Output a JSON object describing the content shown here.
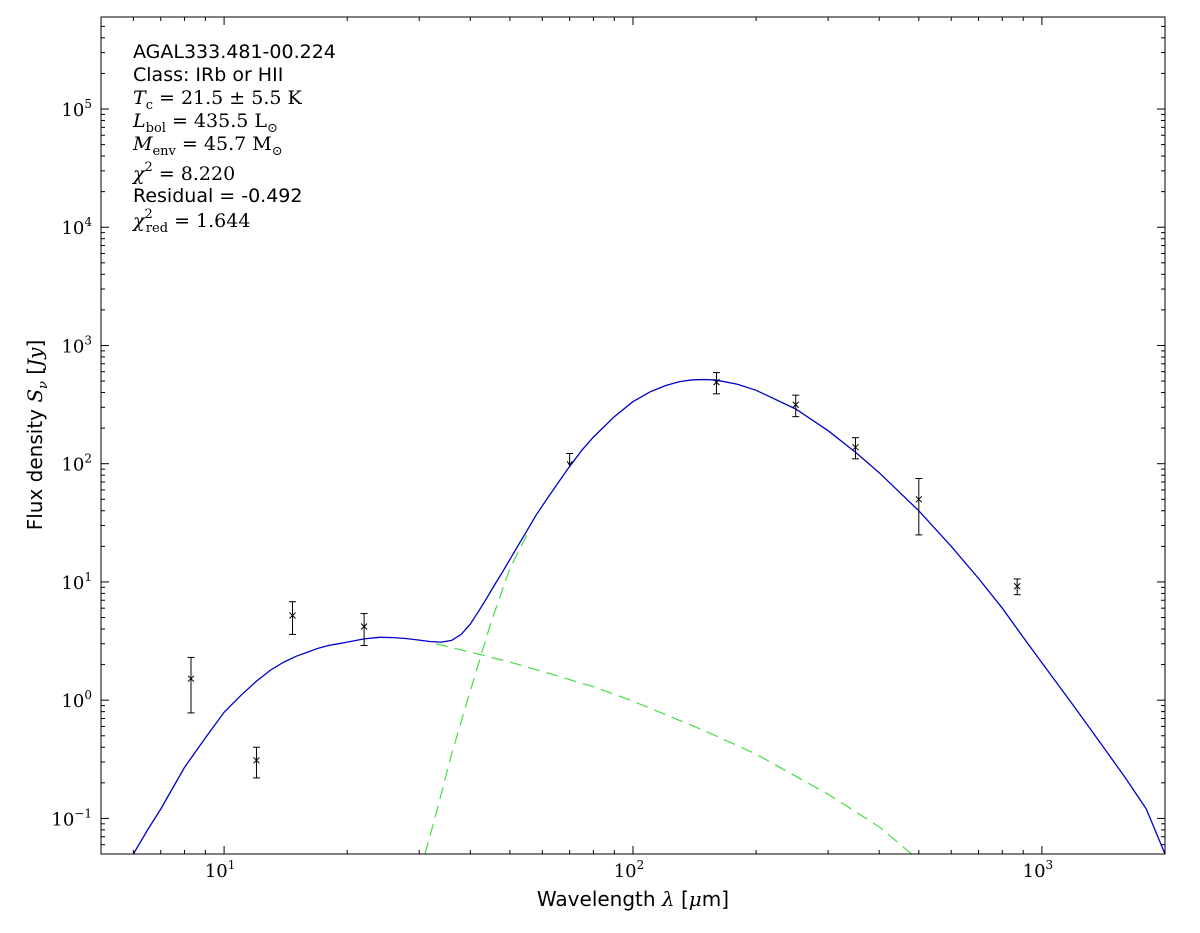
{
  "chart_data": {
    "type": "scatter",
    "xscale": "log",
    "yscale": "log",
    "xlim": [
      5,
      2000
    ],
    "ylim": [
      0.05,
      600000
    ],
    "xlabel_text": "Wavelength ",
    "xlabel_symbol": "λ",
    "xlabel_unit_open": " [",
    "xlabel_unit_mu": "μ",
    "xlabel_unit_rest": "m]",
    "ylabel_text": "Flux density ",
    "ylabel_symbol": "S",
    "ylabel_sub": "ν",
    "ylabel_unit_open": " [",
    "ylabel_unit_it": "Jy",
    "ylabel_unit_close": "]",
    "x_ticks": [
      {
        "value": 10,
        "base": "10",
        "exp": "1"
      },
      {
        "value": 100,
        "base": "10",
        "exp": "2"
      },
      {
        "value": 1000,
        "base": "10",
        "exp": "3"
      }
    ],
    "y_ticks": [
      {
        "value": 0.1,
        "base": "10",
        "exp": "−1"
      },
      {
        "value": 1,
        "base": "10",
        "exp": "0"
      },
      {
        "value": 10,
        "base": "10",
        "exp": "1"
      },
      {
        "value": 100,
        "base": "10",
        "exp": "2"
      },
      {
        "value": 1000,
        "base": "10",
        "exp": "3"
      },
      {
        "value": 10000,
        "base": "10",
        "exp": "4"
      },
      {
        "value": 100000,
        "base": "10",
        "exp": "5"
      }
    ],
    "annotations": {
      "source": "AGAL333.481-00.224",
      "class_line": "Class: IRb or HII",
      "tc": {
        "sym": "T",
        "sub": "c",
        "value": " = 21.5 ± 5.5 K"
      },
      "lbol": {
        "sym": "L",
        "sub": "bol",
        "value": " = 435.5 L",
        "unit_sub": "⊙"
      },
      "menv": {
        "sym": "M",
        "sub": "env",
        "value": " = 45.7 M",
        "unit_sub": "⊙"
      },
      "chi2": {
        "sym": "χ",
        "sup": "2",
        "value": " = 8.220"
      },
      "residual": "Residual = -0.492",
      "chi2red": {
        "sym": "χ",
        "sup": "2",
        "sub": "red",
        "value": " = 1.644"
      }
    },
    "colors": {
      "model": "#0000cc",
      "components": "#44dd44",
      "points": "#000000"
    },
    "points": [
      {
        "x": 8.3,
        "y": 1.52,
        "ylo": 0.78,
        "yhi": 2.3,
        "upper_limit": false
      },
      {
        "x": 12.0,
        "y": 0.31,
        "ylo": 0.22,
        "yhi": 0.4,
        "upper_limit": false
      },
      {
        "x": 14.7,
        "y": 5.2,
        "ylo": 3.6,
        "yhi": 6.8,
        "upper_limit": false
      },
      {
        "x": 22.0,
        "y": 4.2,
        "ylo": 2.9,
        "yhi": 5.4,
        "upper_limit": false
      },
      {
        "x": 70.0,
        "y": 110,
        "ylo": 97,
        "yhi": 122,
        "upper_limit": true
      },
      {
        "x": 160.0,
        "y": 490,
        "ylo": 390,
        "yhi": 590,
        "upper_limit": false
      },
      {
        "x": 250.0,
        "y": 315,
        "ylo": 250,
        "yhi": 380,
        "upper_limit": false
      },
      {
        "x": 350.0,
        "y": 138,
        "ylo": 110,
        "yhi": 166,
        "upper_limit": false
      },
      {
        "x": 500.0,
        "y": 50,
        "ylo": 25,
        "yhi": 75,
        "upper_limit": false
      },
      {
        "x": 870.0,
        "y": 9.2,
        "ylo": 7.8,
        "yhi": 10.6,
        "upper_limit": false
      }
    ],
    "model_total": {
      "x": [
        6.0,
        6.5,
        7.0,
        8.0,
        9.0,
        10.0,
        11.0,
        12.0,
        13.0,
        14.0,
        15.0,
        16.0,
        17.0,
        18.0,
        19.0,
        20.0,
        22.0,
        24.0,
        26.0,
        28.0,
        30.0,
        32.0,
        34.0,
        36.0,
        38.0,
        40.0,
        42.0,
        44.0,
        46.0,
        48.0,
        50.0,
        52.0,
        55.0,
        58.0,
        62.0,
        66.0,
        70.0,
        75.0,
        80.0,
        90.0,
        100.0,
        110.0,
        120.0,
        130.0,
        140.0,
        150.0,
        160.0,
        180.0,
        200.0,
        250.0,
        300.0,
        350.0,
        400.0,
        500.0,
        600.0,
        700.0,
        800.0,
        900.0,
        1000.0,
        1200.0,
        1400.0,
        1600.0,
        1800.0,
        2000.0
      ],
      "y": [
        0.05,
        0.08,
        0.12,
        0.27,
        0.48,
        0.79,
        1.1,
        1.45,
        1.8,
        2.1,
        2.35,
        2.55,
        2.75,
        2.9,
        3.0,
        3.1,
        3.3,
        3.4,
        3.38,
        3.32,
        3.22,
        3.13,
        3.1,
        3.2,
        3.6,
        4.4,
        5.7,
        7.4,
        9.6,
        12.2,
        15.5,
        19.5,
        27,
        37,
        52,
        71,
        95,
        130,
        168,
        250,
        335,
        405,
        458,
        495,
        512,
        515,
        508,
        470,
        418,
        290,
        190,
        125,
        84,
        40,
        20,
        10.7,
        6.0,
        3.4,
        2.07,
        0.88,
        0.42,
        0.22,
        0.12,
        0.05
      ]
    },
    "component_warm": {
      "x": [
        33.0,
        40.0,
        50.0,
        60.0,
        80.0,
        100.0,
        150.0,
        200.0,
        300.0,
        400.0,
        480.0
      ],
      "y": [
        3.0,
        2.55,
        2.1,
        1.75,
        1.3,
        0.98,
        0.55,
        0.35,
        0.16,
        0.085,
        0.05
      ]
    },
    "component_cold": {
      "x": [
        31.0,
        33.0,
        36.0,
        40.0,
        45.0,
        50.0,
        55.0
      ],
      "y": [
        0.05,
        0.11,
        0.35,
        1.2,
        4.6,
        13.0,
        25.0
      ]
    }
  }
}
